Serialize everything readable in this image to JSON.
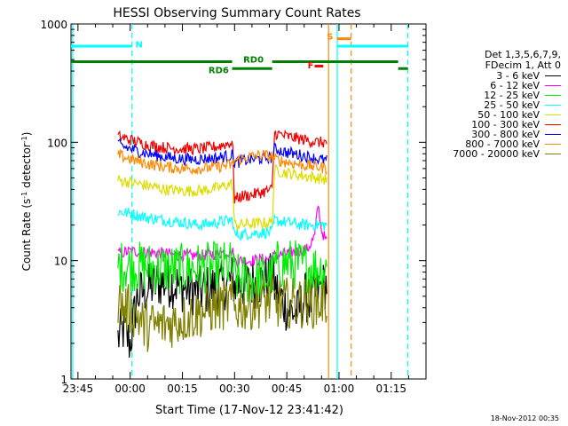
{
  "chart_data": {
    "type": "line",
    "title": "HESSI Observing Summary Count Rates",
    "xlabel": "Start Time (17-Nov-12 23:41:42)",
    "ylabel_main": "Count Rate (s",
    "ylabel_exp1": "-1",
    "ylabel_mid": " detector",
    "ylabel_exp2": "-1",
    "ylabel_end": ")",
    "ylog": true,
    "ylim": [
      1,
      1000
    ],
    "xlim_minutes": [
      -17,
      85
    ],
    "x_ticks": [
      {
        "m": -15,
        "label": "23:45"
      },
      {
        "m": 0,
        "label": "00:00"
      },
      {
        "m": 15,
        "label": "00:15"
      },
      {
        "m": 30,
        "label": "00:30"
      },
      {
        "m": 45,
        "label": "00:45"
      },
      {
        "m": 60,
        "label": "01:00"
      },
      {
        "m": 75,
        "label": "01:15"
      }
    ],
    "y_ticks": [
      {
        "v": 1,
        "label": "1"
      },
      {
        "v": 10,
        "label": "10"
      },
      {
        "v": 100,
        "label": "100"
      },
      {
        "v": 1000,
        "label": "1000"
      }
    ],
    "legend_header": [
      "Det 1,3,5,6,7,9,",
      "FDecim 1, Att 0"
    ],
    "series": [
      {
        "name": "3 - 6 keV",
        "color": "#000000",
        "values": [
          [
            -3.5,
            2.2
          ],
          [
            -2,
            2.6
          ],
          [
            0,
            2.0
          ],
          [
            2,
            5
          ],
          [
            4,
            5.5
          ],
          [
            8,
            6.5
          ],
          [
            12,
            6.5
          ],
          [
            16,
            5.8
          ],
          [
            20,
            5.5
          ],
          [
            24,
            5.8
          ],
          [
            27,
            6.2
          ],
          [
            29.4,
            7.0
          ],
          [
            30,
            6.3
          ],
          [
            34,
            6.3
          ],
          [
            39,
            6.8
          ],
          [
            40.8,
            7.2
          ],
          [
            41.5,
            6.0
          ],
          [
            45,
            4.0
          ],
          [
            48,
            3.5
          ],
          [
            50,
            5.0
          ],
          [
            52,
            4.5
          ],
          [
            54,
            5.5
          ],
          [
            56.6,
            6.5
          ]
        ]
      },
      {
        "name": "6 - 12 keV",
        "color": "#ff00ff",
        "values": [
          [
            -3.5,
            11.5
          ],
          [
            0,
            12
          ],
          [
            5,
            11.8
          ],
          [
            10,
            11.5
          ],
          [
            15,
            11.0
          ],
          [
            20,
            11.0
          ],
          [
            25,
            11.5
          ],
          [
            29.4,
            12
          ],
          [
            30,
            10.0
          ],
          [
            35,
            10.0
          ],
          [
            40.8,
            10.5
          ],
          [
            41.5,
            11.0
          ],
          [
            45,
            11.5
          ],
          [
            48,
            12
          ],
          [
            51,
            12.5
          ],
          [
            53,
            16
          ],
          [
            54,
            30
          ],
          [
            55,
            18
          ],
          [
            56.6,
            14
          ]
        ]
      },
      {
        "name": "12 - 25 keV",
        "color": "#00ee00",
        "values": [
          [
            -3.5,
            9.0
          ],
          [
            0,
            9.0
          ],
          [
            5,
            8.8
          ],
          [
            10,
            8.5
          ],
          [
            15,
            8.5
          ],
          [
            20,
            8.7
          ],
          [
            25,
            8.8
          ],
          [
            29.4,
            9.0
          ],
          [
            30,
            7.0
          ],
          [
            35,
            7.0
          ],
          [
            40.8,
            7.2
          ],
          [
            41.5,
            9.0
          ],
          [
            45,
            9.5
          ],
          [
            50,
            9.0
          ],
          [
            54,
            8.5
          ],
          [
            56.6,
            8.5
          ]
        ]
      },
      {
        "name": "25 - 50 keV",
        "color": "#00ffff",
        "values": [
          [
            -3.5,
            26
          ],
          [
            0,
            25
          ],
          [
            5,
            23
          ],
          [
            10,
            22
          ],
          [
            15,
            21
          ],
          [
            20,
            20
          ],
          [
            25,
            21
          ],
          [
            29.4,
            22
          ],
          [
            30,
            16.5
          ],
          [
            35,
            17
          ],
          [
            40.8,
            17.5
          ],
          [
            41.5,
            22
          ],
          [
            45,
            21
          ],
          [
            50,
            20
          ],
          [
            54,
            20
          ],
          [
            56.6,
            20
          ]
        ]
      },
      {
        "name": "50 - 100 keV",
        "color": "#dddd00",
        "values": [
          [
            -3.5,
            48
          ],
          [
            0,
            46
          ],
          [
            5,
            43
          ],
          [
            10,
            40
          ],
          [
            15,
            39
          ],
          [
            20,
            39
          ],
          [
            25,
            41
          ],
          [
            29.4,
            45
          ],
          [
            30,
            20
          ],
          [
            35,
            20.5
          ],
          [
            40.8,
            21
          ],
          [
            41.5,
            58
          ],
          [
            45,
            55
          ],
          [
            50,
            52
          ],
          [
            54,
            50
          ],
          [
            56.6,
            48
          ]
        ]
      },
      {
        "name": "100 - 300 keV",
        "color": "#ee0000",
        "values": [
          [
            -3.5,
            112
          ],
          [
            0,
            105
          ],
          [
            5,
            95
          ],
          [
            10,
            90
          ],
          [
            15,
            88
          ],
          [
            20,
            88
          ],
          [
            25,
            92
          ],
          [
            29.4,
            100
          ],
          [
            30,
            33
          ],
          [
            32,
            35
          ],
          [
            35,
            36
          ],
          [
            38,
            38
          ],
          [
            40.8,
            40
          ],
          [
            41.5,
            120
          ],
          [
            45,
            112
          ],
          [
            50,
            105
          ],
          [
            54,
            100
          ],
          [
            56.6,
            100
          ]
        ]
      },
      {
        "name": "300 - 800 keV",
        "color": "#0000ff",
        "values": [
          [
            -3.5,
            95
          ],
          [
            0,
            88
          ],
          [
            5,
            80
          ],
          [
            10,
            75
          ],
          [
            15,
            72
          ],
          [
            20,
            72
          ],
          [
            25,
            74
          ],
          [
            29.4,
            78
          ],
          [
            30,
            67
          ],
          [
            35,
            72
          ],
          [
            40.8,
            74
          ],
          [
            41.5,
            88
          ],
          [
            45,
            82
          ],
          [
            50,
            77
          ],
          [
            54,
            72
          ],
          [
            56.6,
            70
          ]
        ]
      },
      {
        "name": "800 - 7000 keV",
        "color": "#ff8800",
        "values": [
          [
            -3.5,
            78
          ],
          [
            0,
            72
          ],
          [
            5,
            66
          ],
          [
            10,
            62
          ],
          [
            15,
            60
          ],
          [
            20,
            60
          ],
          [
            25,
            62
          ],
          [
            29.4,
            65
          ],
          [
            30,
            70
          ],
          [
            35,
            76
          ],
          [
            38,
            78
          ],
          [
            40.8,
            76
          ],
          [
            41.5,
            72
          ],
          [
            45,
            68
          ],
          [
            50,
            64
          ],
          [
            54,
            62
          ],
          [
            56.6,
            60
          ]
        ]
      },
      {
        "name": "7000 - 20000 keV",
        "color": "#808000",
        "values": [
          [
            -3.5,
            4.6
          ],
          [
            -2,
            4.0
          ],
          [
            0,
            3.8
          ],
          [
            2,
            3.5
          ],
          [
            4,
            2.8
          ],
          [
            8,
            2.8
          ],
          [
            12,
            3.0
          ],
          [
            16,
            3.3
          ],
          [
            20,
            3.6
          ],
          [
            24,
            4.0
          ],
          [
            27,
            4.2
          ],
          [
            29.4,
            4.5
          ],
          [
            30,
            4.0
          ],
          [
            34,
            4.2
          ],
          [
            38,
            4.5
          ],
          [
            40.8,
            4.6
          ],
          [
            41.5,
            4.3
          ],
          [
            45,
            4.4
          ],
          [
            50,
            4.4
          ],
          [
            54,
            4.4
          ],
          [
            56.6,
            4.4
          ]
        ]
      }
    ],
    "state_bars": [
      {
        "label": "N",
        "color": "#00ffff",
        "y": 650,
        "segments": [
          [
            -17,
            0.5
          ]
        ]
      },
      {
        "label": "N",
        "color": "#00ffff",
        "y": 650,
        "segments": [
          [
            59.5,
            79.8
          ]
        ]
      },
      {
        "label": "S",
        "color": "#ff8800",
        "y": 750,
        "segments": [
          [
            59.5,
            63.5
          ]
        ]
      },
      {
        "label": "F",
        "color": "#ff0000",
        "y": 440,
        "segments": [
          [
            53,
            55.5
          ]
        ]
      },
      {
        "label": "RD0",
        "color": "#008000",
        "y": 480,
        "segments": [
          [
            -17,
            29.3
          ]
        ]
      },
      {
        "label": "RD0",
        "color": "#008000",
        "y": 480,
        "segments": [
          [
            40.8,
            77
          ]
        ]
      },
      {
        "label": "RD6",
        "color": "#008000",
        "y": 420,
        "segments": [
          [
            29.3,
            40.8
          ]
        ]
      },
      {
        "label": "RD6",
        "color": "#008000",
        "y": 420,
        "segments": [
          [
            77,
            79.8
          ]
        ]
      }
    ],
    "state_labels": [
      {
        "text": "N",
        "color": "#00ffff",
        "m": 1.5,
        "y": 680
      },
      {
        "text": "RD0",
        "color": "#008000",
        "m": 32.5,
        "y": 505
      },
      {
        "text": "RD6",
        "color": "#008000",
        "m": 22.5,
        "y": 410
      },
      {
        "text": "F",
        "color": "#ff0000",
        "m": 51,
        "y": 450
      },
      {
        "text": "S",
        "color": "#ff8800",
        "m": 56.5,
        "y": 790
      }
    ],
    "vlines": [
      {
        "m": -16.5,
        "color": "#00ffff",
        "dash": false
      },
      {
        "m": 0.5,
        "color": "#00ffff",
        "dash": true
      },
      {
        "m": 57,
        "color": "#ff8800",
        "dash": false
      },
      {
        "m": 59.5,
        "color": "#00ffff",
        "dash": false
      },
      {
        "m": 63.5,
        "color": "#ff8800",
        "dash": true
      },
      {
        "m": 79.8,
        "color": "#00ffff",
        "dash": true
      }
    ],
    "footer": "18-Nov-2012 00:35"
  }
}
